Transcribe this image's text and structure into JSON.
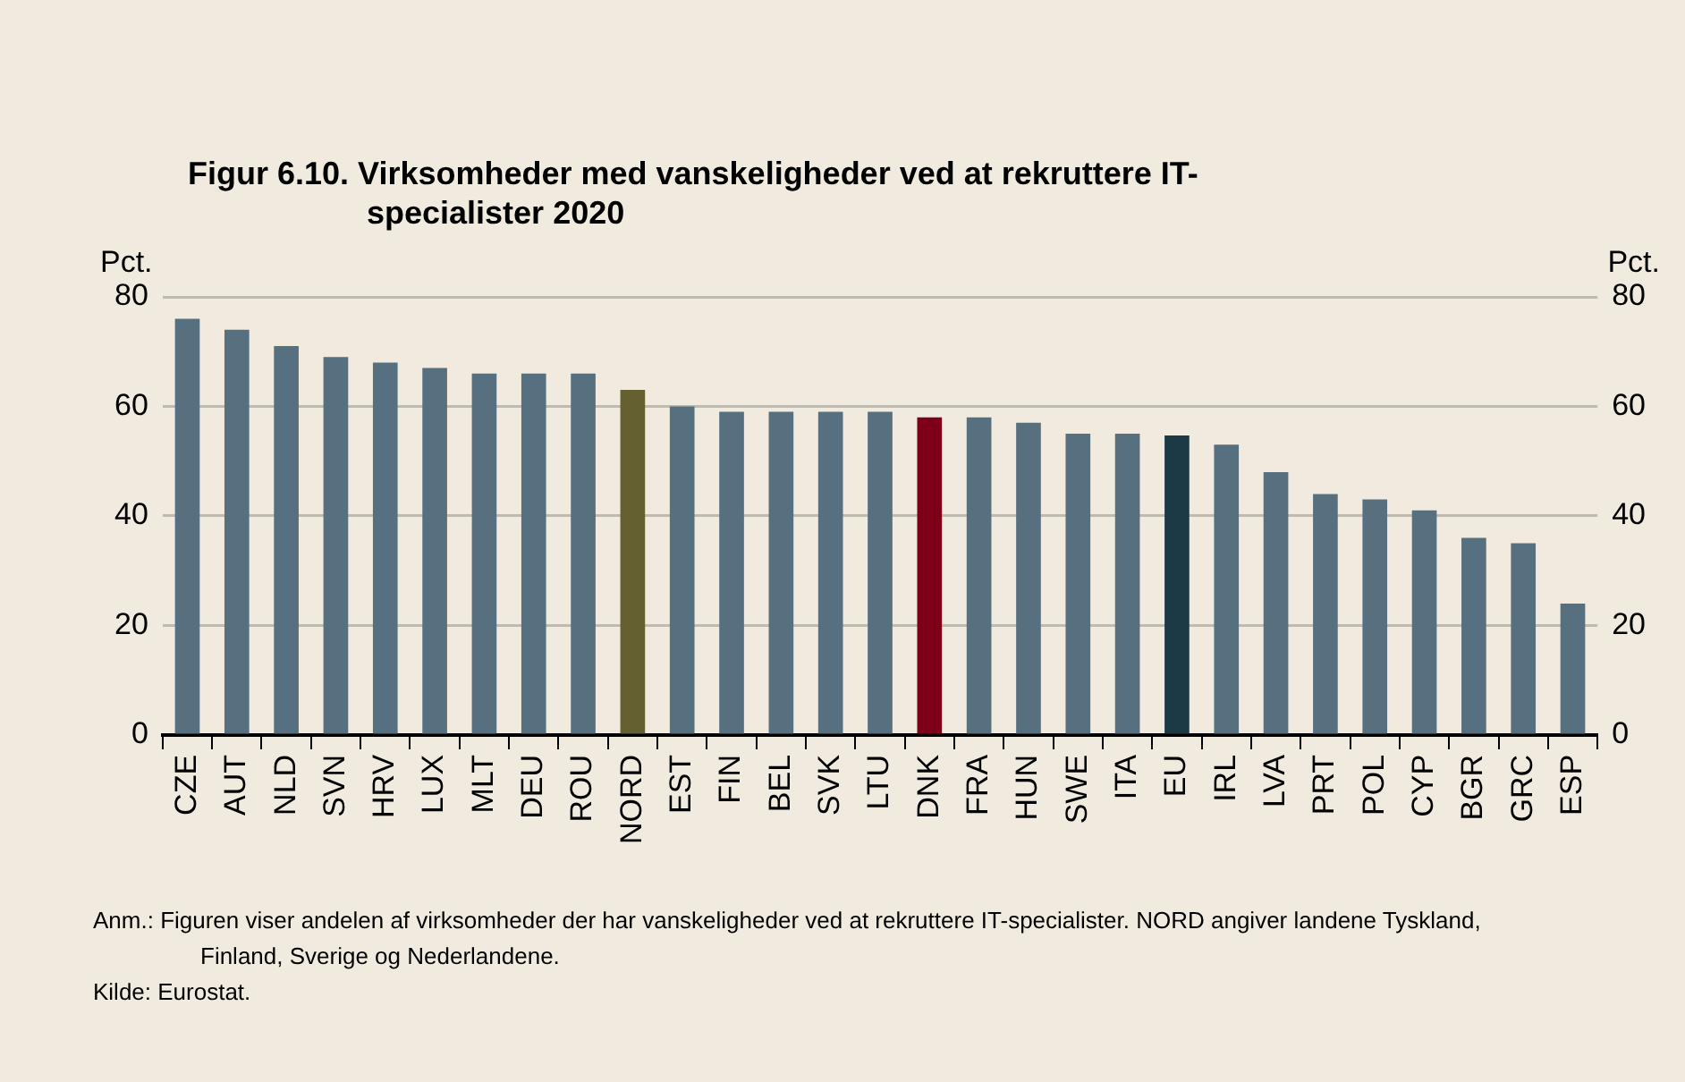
{
  "chart_data": {
    "type": "bar",
    "title": "Figur 6.10. Virksomheder med vanskeligheder ved at rekruttere IT-specialister 2020",
    "ylabel": "Pct.",
    "y2label": "Pct.",
    "categories": [
      "CZE",
      "AUT",
      "NLD",
      "SVN",
      "HRV",
      "LUX",
      "MLT",
      "DEU",
      "ROU",
      "NORD",
      "EST",
      "FIN",
      "BEL",
      "SVK",
      "LTU",
      "DNK",
      "FRA",
      "HUN",
      "SWE",
      "ITA",
      "EU",
      "IRL",
      "LVA",
      "PRT",
      "POL",
      "CYP",
      "BGR",
      "GRC",
      "ESP"
    ],
    "values": [
      76,
      74,
      71,
      69,
      68,
      67,
      66,
      66,
      66,
      63,
      60,
      59,
      59,
      59,
      59,
      58,
      58,
      57,
      55,
      55,
      54.7,
      53,
      48,
      44,
      43,
      41,
      36,
      35,
      24
    ],
    "colors": [
      "#577080",
      "#577080",
      "#577080",
      "#577080",
      "#577080",
      "#577080",
      "#577080",
      "#577080",
      "#577080",
      "#656030",
      "#577080",
      "#577080",
      "#577080",
      "#577080",
      "#577080",
      "#7d0018",
      "#577080",
      "#577080",
      "#577080",
      "#577080",
      "#1c3a45",
      "#577080",
      "#577080",
      "#577080",
      "#577080",
      "#577080",
      "#577080",
      "#577080",
      "#577080"
    ],
    "ylim": [
      0,
      80
    ],
    "yticks": [
      0,
      20,
      40,
      60,
      80
    ],
    "y2lim": [
      0,
      80
    ],
    "y2ticks": [
      0,
      20,
      40,
      60,
      80
    ],
    "grid": "y",
    "legend": false,
    "annotations": [
      "Anm.: Figuren viser andelen af virksomheder der har vanskeligheder ved at rekruttere IT-specialister. NORD angiver landene Tyskland, Finland, Sverige og Nederlandene.",
      "Kilde: Eurostat."
    ]
  }
}
